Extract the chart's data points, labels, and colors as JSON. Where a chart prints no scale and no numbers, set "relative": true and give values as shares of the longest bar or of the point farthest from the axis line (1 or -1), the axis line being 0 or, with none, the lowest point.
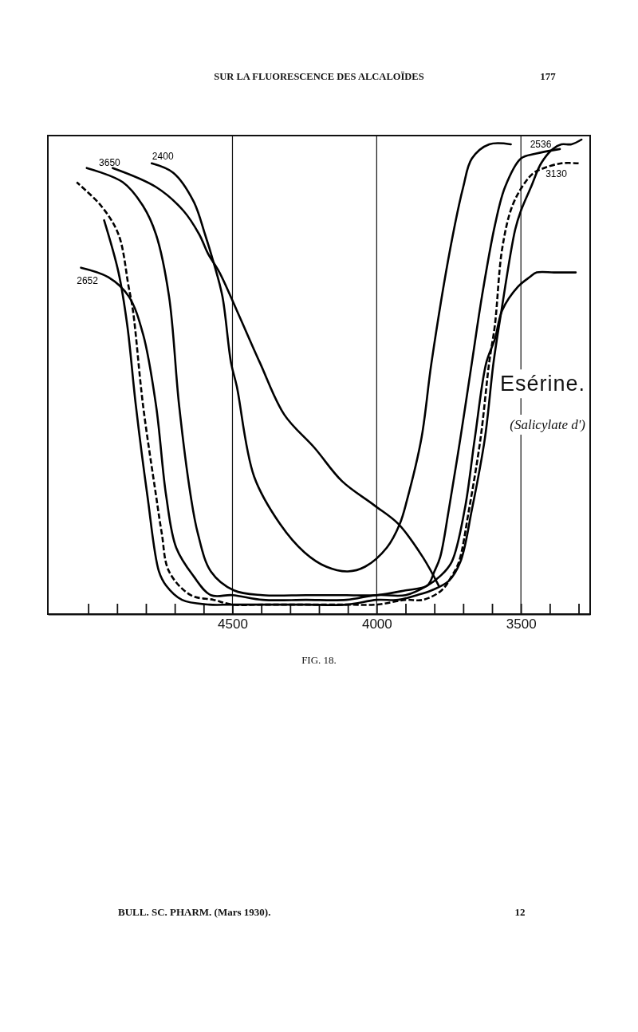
{
  "chart_data": {
    "type": "line",
    "title": "Esérine.",
    "subtitle": "(Salicylate d')",
    "relative": true,
    "xlim": [
      5140,
      3260
    ],
    "xticks": [
      {
        "value": 3300,
        "label": null
      },
      {
        "value": 3400,
        "label": null
      },
      3500,
      {
        "value": 3600,
        "label": null
      },
      {
        "value": 3700,
        "label": null
      },
      {
        "value": 3800,
        "label": null
      },
      {
        "value": 3900,
        "label": null
      },
      4000,
      {
        "value": 4100,
        "label": null
      },
      {
        "value": 4200,
        "label": null
      },
      {
        "value": 4300,
        "label": null
      },
      {
        "value": 4400,
        "label": null
      },
      4500,
      {
        "value": 4600,
        "label": null
      },
      {
        "value": 4700,
        "label": null
      },
      {
        "value": 4800,
        "label": null
      },
      {
        "value": 4900,
        "label": null
      },
      {
        "value": 5000,
        "label": null
      }
    ],
    "grid": "x",
    "series": [
      {
        "color": "#000000",
        "x": [
          3290,
          3325,
          3360,
          3390,
          3430,
          3465,
          3500,
          3520,
          3570,
          3595,
          3625,
          3670,
          3710,
          3750,
          3810,
          3860,
          3925,
          4000,
          4105,
          4245,
          4395,
          4505,
          4580,
          4675,
          4730,
          4755,
          4795,
          4835,
          4865,
          4895,
          4945
        ],
        "values": [
          1,
          0.99,
          0.99,
          0.98,
          0.95,
          0.9,
          0.85,
          0.81,
          0.63,
          0.53,
          0.37,
          0.22,
          0.11,
          0.07,
          0.05,
          0.04,
          0.03,
          0.03,
          0.02,
          0.02,
          0.02,
          0.02,
          0.02,
          0.03,
          0.06,
          0.09,
          0.25,
          0.44,
          0.61,
          0.72,
          0.83
        ]
      },
      {
        "name": "2536",
        "color": "#000000",
        "x": [
          3365,
          3450,
          3500,
          3555,
          3590,
          3635,
          3670,
          3710,
          3750,
          3780,
          3800,
          3825,
          3900,
          4000,
          4105,
          4245,
          4395,
          4495,
          4575,
          4620,
          4645,
          4685,
          4720,
          4765,
          4810,
          4880,
          5005
        ],
        "values": [
          0.98,
          0.97,
          0.96,
          0.9,
          0.82,
          0.67,
          0.53,
          0.37,
          0.22,
          0.12,
          0.09,
          0.06,
          0.05,
          0.04,
          0.04,
          0.04,
          0.04,
          0.05,
          0.09,
          0.17,
          0.25,
          0.44,
          0.67,
          0.8,
          0.86,
          0.91,
          0.94
        ]
      },
      {
        "name": "3130",
        "color": "#000000",
        "line_style": "dashed",
        "x": [
          3300,
          3360,
          3420,
          3455,
          3485,
          3530,
          3565,
          3590,
          3610,
          3640,
          3680,
          3715,
          3740,
          3775,
          3840,
          3900,
          4000,
          4105,
          4245,
          4395,
          4500,
          4565,
          4645,
          4720,
          4745,
          4765,
          4810,
          4845,
          4860,
          4895,
          4955,
          5040
        ],
        "values": [
          0.95,
          0.95,
          0.94,
          0.93,
          0.91,
          0.86,
          0.77,
          0.61,
          0.53,
          0.37,
          0.22,
          0.11,
          0.08,
          0.05,
          0.03,
          0.03,
          0.02,
          0.02,
          0.02,
          0.02,
          0.02,
          0.03,
          0.04,
          0.09,
          0.17,
          0.25,
          0.44,
          0.64,
          0.69,
          0.8,
          0.86,
          0.91
        ]
      },
      {
        "name": "2652",
        "color": "#000000",
        "x": [
          3310,
          3385,
          3445,
          3470,
          3510,
          3565,
          3590,
          3620,
          3660,
          3695,
          3740,
          3780,
          3825,
          3900,
          4000,
          4105,
          4245,
          4395,
          4500,
          4575,
          4635,
          4695,
          4730,
          4765,
          4810,
          4860,
          4930,
          5025
        ],
        "values": [
          0.72,
          0.72,
          0.72,
          0.71,
          0.69,
          0.64,
          0.58,
          0.53,
          0.37,
          0.22,
          0.11,
          0.08,
          0.06,
          0.04,
          0.04,
          0.03,
          0.03,
          0.03,
          0.04,
          0.04,
          0.08,
          0.14,
          0.25,
          0.44,
          0.59,
          0.67,
          0.71,
          0.73
        ]
      },
      {
        "name": "2400",
        "color": "#000000",
        "x": [
          3535,
          3610,
          3670,
          3700,
          3745,
          3810,
          3845,
          3895,
          3920,
          3965,
          4040,
          4100,
          4175,
          4250,
          4335,
          4425,
          4485,
          4505,
          4535,
          4565,
          4595,
          4635,
          4705,
          4780
        ],
        "values": [
          0.99,
          0.99,
          0.96,
          0.9,
          0.77,
          0.53,
          0.37,
          0.24,
          0.19,
          0.14,
          0.1,
          0.09,
          0.1,
          0.13,
          0.19,
          0.29,
          0.48,
          0.53,
          0.67,
          0.74,
          0.8,
          0.87,
          0.93,
          0.95
        ]
      },
      {
        "name": "3650",
        "color": "#000000",
        "x": [
          3785,
          3840,
          3925,
          4010,
          4120,
          4215,
          4320,
          4405,
          4485,
          4545,
          4585,
          4615,
          4670,
          4765,
          4915
        ],
        "values": [
          0.06,
          0.12,
          0.19,
          0.23,
          0.28,
          0.35,
          0.42,
          0.53,
          0.64,
          0.72,
          0.76,
          0.8,
          0.85,
          0.9,
          0.94
        ]
      }
    ],
    "annotations": [
      "SUR LA FLUORESCENCE DES ALCALOÏDES",
      "177",
      "FIG. 18.",
      "BULL. SC. PHARM. (Mars 1930).",
      "12"
    ]
  }
}
